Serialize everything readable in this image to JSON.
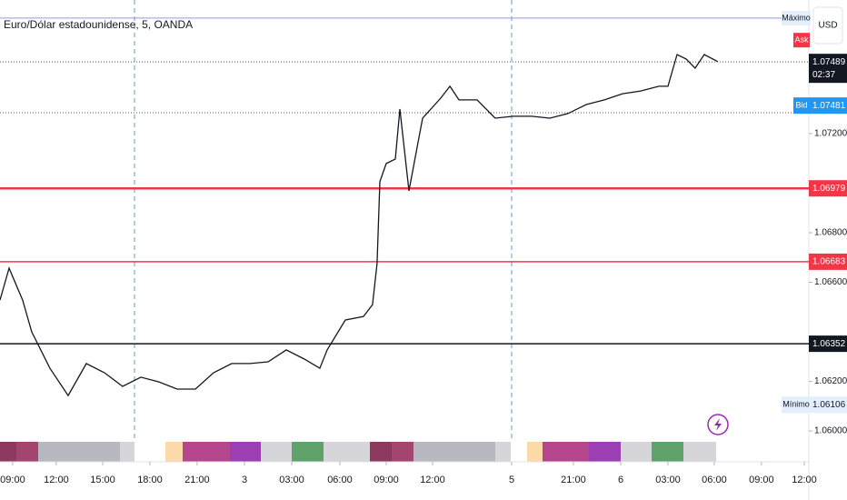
{
  "chart_data": {
    "type": "line",
    "title": "Euro/Dólar estadounidense, 5, OANDA",
    "currency": "USD",
    "color": "#131722",
    "x": [
      -0.81,
      -0.23,
      0.64,
      1.22,
      2.38,
      3.55,
      4.71,
      5.87,
      7.03,
      8.2,
      9.36,
      10.52,
      11.69,
      12.85,
      14.01,
      15.17,
      16.34,
      17.5,
      18.66,
      19.65,
      20.12,
      21.28,
      22.44,
      23.02,
      23.31,
      23.49,
      23.9,
      24.48,
      24.77,
      25.35,
      26.22,
      27.38,
      27.97,
      28.55,
      29.71,
      30.87,
      32.03,
      33.2,
      34.36,
      35.52,
      36.69,
      37.85,
      39.01,
      40.17,
      41.34,
      41.92,
      42.5,
      43.08,
      43.66,
      44.24,
      45.12
    ],
    "values": [
      1.06528,
      1.06657,
      1.06528,
      1.064,
      1.06253,
      1.06143,
      1.06272,
      1.06235,
      1.0618,
      1.06217,
      1.06198,
      1.06169,
      1.06169,
      1.06235,
      1.06272,
      1.06272,
      1.06279,
      1.06327,
      1.0629,
      1.06253,
      1.06327,
      1.06448,
      1.06462,
      1.0651,
      1.06675,
      1.07006,
      1.07079,
      1.07097,
      1.07299,
      1.06969,
      1.07262,
      1.07343,
      1.07391,
      1.07336,
      1.07336,
      1.07262,
      1.0727,
      1.0727,
      1.07262,
      1.07281,
      1.07317,
      1.07336,
      1.07361,
      1.07372,
      1.07391,
      1.07391,
      1.07519,
      1.07501,
      1.07464,
      1.07519,
      1.0749
    ],
    "xlim": [
      -0.81,
      50.93
    ],
    "ylim": [
      1.0596,
      1.07739
    ],
    "xticks": [
      {
        "value": 0,
        "label": "09:00"
      },
      {
        "value": 2.79,
        "label": "12:00"
      },
      {
        "value": 5.76,
        "label": "15:00"
      },
      {
        "value": 8.78,
        "label": "18:00"
      },
      {
        "value": 11.8,
        "label": "21:00"
      },
      {
        "value": 14.83,
        "label": "3"
      },
      {
        "value": 17.85,
        "label": "03:00"
      },
      {
        "value": 20.93,
        "label": "06:00"
      },
      {
        "value": 23.9,
        "label": "09:00"
      },
      {
        "value": 26.86,
        "label": "12:00"
      },
      {
        "value": 31.92,
        "label": "5"
      },
      {
        "value": 35.87,
        "label": "21:00"
      },
      {
        "value": 38.9,
        "label": "6"
      },
      {
        "value": 41.92,
        "label": "03:00"
      },
      {
        "value": 44.88,
        "label": "06:00"
      },
      {
        "value": 47.9,
        "label": "09:00"
      },
      {
        "value": 50.64,
        "label": "12:00"
      }
    ],
    "yticks": [
      {
        "value": 1.072,
        "label": "1.07200"
      },
      {
        "value": 1.068,
        "label": "1.06800"
      },
      {
        "value": 1.066,
        "label": "1.06600"
      },
      {
        "value": 1.062,
        "label": "1.06200"
      },
      {
        "value": 1.06,
        "label": "1.06000"
      }
    ],
    "levels": [
      {
        "value": 1.06979,
        "label": "1.06979",
        "color": "#f23645"
      },
      {
        "value": 1.06683,
        "label": "1.06683",
        "color": "#f23645"
      },
      {
        "value": 1.06352,
        "label": "1.06352",
        "color": "#131722"
      }
    ],
    "last": {
      "value": 1.07489,
      "label": "1.07489",
      "countdown": "02:37"
    },
    "bid": {
      "name": "Bid",
      "label": "1.07481",
      "color": "#2196f3"
    },
    "ask": {
      "name": "Ask",
      "color": "#f23645"
    },
    "max": {
      "name": "Máximo",
      "value": 1.07666,
      "color": "#9598e8"
    },
    "min": {
      "name": "Mínimo",
      "value": 1.06106,
      "label": "1.06106"
    }
  }
}
